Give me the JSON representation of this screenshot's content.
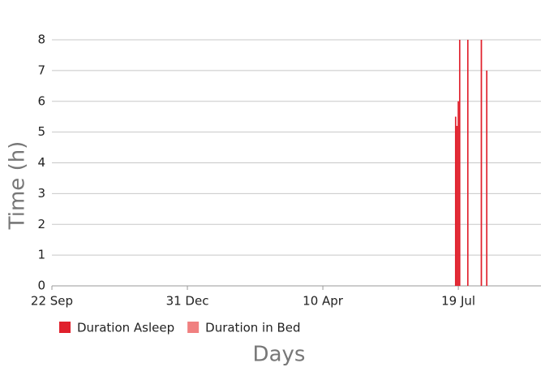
{
  "chart_data": {
    "type": "bar",
    "x_label": "Days",
    "y_label": "Time (h)",
    "x": [
      298,
      299,
      300,
      301,
      307,
      317,
      321
    ],
    "series": [
      {
        "name": "Duration Asleep",
        "color": "#e0202c",
        "values": [
          5.5,
          5.2,
          6,
          8,
          8,
          8,
          7
        ]
      },
      {
        "name": "Duration in Bed",
        "color": "#f08080",
        "values": [
          5.5,
          5.2,
          6,
          8,
          8,
          8,
          7
        ]
      }
    ],
    "xlim": [
      0,
      361
    ],
    "xticks": [
      {
        "value": 0,
        "label": "22 Sep"
      },
      {
        "value": 100,
        "label": "31 Dec"
      },
      {
        "value": 200,
        "label": "10 Apr"
      },
      {
        "value": 300,
        "label": "19 Jul"
      }
    ],
    "ylim": [
      0,
      8
    ],
    "yticks": [
      0,
      1,
      2,
      3,
      4,
      5,
      6,
      7,
      8
    ],
    "grid": true
  }
}
